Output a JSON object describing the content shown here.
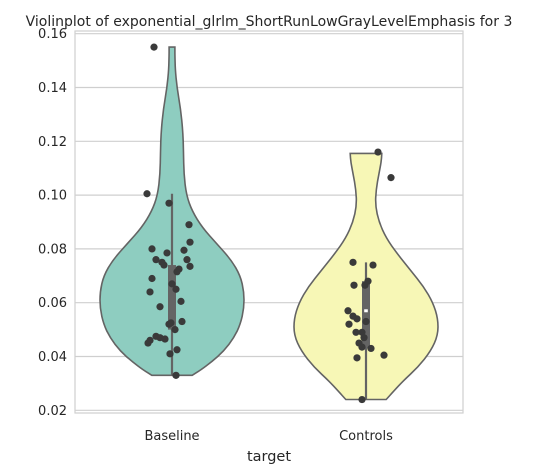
{
  "chart_data": {
    "type": "violin",
    "title": "Violinplot of exponential_glrlm_ShortRunLowGrayLevelEmphasis for 3",
    "xlabel": "target",
    "ylabel": "",
    "categories": [
      "Baseline",
      "Controls"
    ],
    "ylim": [
      0.019,
      0.161
    ],
    "yticks": [
      0.02,
      0.04,
      0.06,
      0.08,
      0.1,
      0.12,
      0.14,
      0.16
    ],
    "ytick_labels": [
      "0.02",
      "0.04",
      "0.06",
      "0.08",
      "0.10",
      "0.12",
      "0.14",
      "0.16"
    ],
    "grid": true,
    "colors": {
      "Baseline": "#8ecdc0",
      "Controls": "#f7f7b6",
      "points": "#3a3a3a",
      "box": "#646464",
      "outline": "#646464",
      "grid": "#cfcfcf",
      "axes": "#cfcfcf"
    },
    "violins": [
      {
        "category": "Baseline",
        "min": 0.033,
        "max": 0.155,
        "q1": 0.05,
        "median": 0.067,
        "q3": 0.074,
        "whisker_low": 0.033,
        "whisker_high": 0.1005,
        "density_halfwidth_fraction": [
          [
            0.033,
            0.28
          ],
          [
            0.035,
            0.4
          ],
          [
            0.038,
            0.55
          ],
          [
            0.042,
            0.72
          ],
          [
            0.047,
            0.86
          ],
          [
            0.052,
            0.95
          ],
          [
            0.058,
            1.0
          ],
          [
            0.064,
            1.0
          ],
          [
            0.07,
            0.95
          ],
          [
            0.076,
            0.82
          ],
          [
            0.082,
            0.62
          ],
          [
            0.088,
            0.42
          ],
          [
            0.094,
            0.28
          ],
          [
            0.1,
            0.2
          ],
          [
            0.108,
            0.165
          ],
          [
            0.116,
            0.16
          ],
          [
            0.124,
            0.15
          ],
          [
            0.132,
            0.12
          ],
          [
            0.14,
            0.07
          ],
          [
            0.147,
            0.045
          ],
          [
            0.152,
            0.04
          ],
          [
            0.155,
            0.04
          ]
        ],
        "points": [
          [
            -0.18,
            0.155
          ],
          [
            -0.03,
            0.097
          ],
          [
            -0.25,
            0.1005
          ],
          [
            0.17,
            0.089
          ],
          [
            0.18,
            0.0825
          ],
          [
            0.12,
            0.0795
          ],
          [
            -0.05,
            0.0785
          ],
          [
            -0.2,
            0.08
          ],
          [
            0.15,
            0.076
          ],
          [
            -0.16,
            0.076
          ],
          [
            -0.1,
            0.075
          ],
          [
            -0.08,
            0.074
          ],
          [
            0.18,
            0.0735
          ],
          [
            0.07,
            0.0725
          ],
          [
            0.05,
            0.0715
          ],
          [
            -0.2,
            0.069
          ],
          [
            0.0,
            0.067
          ],
          [
            0.04,
            0.065
          ],
          [
            -0.22,
            0.064
          ],
          [
            0.09,
            0.0605
          ],
          [
            -0.12,
            0.0585
          ],
          [
            0.1,
            0.053
          ],
          [
            -0.01,
            0.0525
          ],
          [
            -0.03,
            0.052
          ],
          [
            0.03,
            0.05
          ],
          [
            -0.16,
            0.0475
          ],
          [
            -0.12,
            0.047
          ],
          [
            -0.07,
            0.0465
          ],
          [
            -0.22,
            0.046
          ],
          [
            -0.24,
            0.045
          ],
          [
            0.05,
            0.0425
          ],
          [
            -0.02,
            0.041
          ],
          [
            0.04,
            0.033
          ]
        ]
      },
      {
        "category": "Controls",
        "min": 0.024,
        "max": 0.1155,
        "q1": 0.043,
        "median": 0.057,
        "q3": 0.068,
        "whisker_low": 0.024,
        "whisker_high": 0.075,
        "density_halfwidth_fraction": [
          [
            0.024,
            0.28
          ],
          [
            0.027,
            0.38
          ],
          [
            0.031,
            0.52
          ],
          [
            0.036,
            0.72
          ],
          [
            0.042,
            0.9
          ],
          [
            0.048,
            1.0
          ],
          [
            0.054,
            1.0
          ],
          [
            0.06,
            0.93
          ],
          [
            0.066,
            0.8
          ],
          [
            0.072,
            0.62
          ],
          [
            0.078,
            0.44
          ],
          [
            0.084,
            0.28
          ],
          [
            0.09,
            0.18
          ],
          [
            0.096,
            0.13
          ],
          [
            0.102,
            0.14
          ],
          [
            0.108,
            0.18
          ],
          [
            0.112,
            0.21
          ],
          [
            0.1155,
            0.22
          ]
        ],
        "points": [
          [
            0.12,
            0.116
          ],
          [
            0.25,
            0.1065
          ],
          [
            -0.13,
            0.075
          ],
          [
            0.07,
            0.074
          ],
          [
            -0.01,
            0.0665
          ],
          [
            0.02,
            0.068
          ],
          [
            -0.12,
            0.0665
          ],
          [
            -0.18,
            0.057
          ],
          [
            -0.13,
            0.055
          ],
          [
            -0.09,
            0.054
          ],
          [
            0.0,
            0.053
          ],
          [
            -0.17,
            0.052
          ],
          [
            -0.04,
            0.049
          ],
          [
            -0.1,
            0.049
          ],
          [
            -0.02,
            0.047
          ],
          [
            -0.07,
            0.045
          ],
          [
            0.05,
            0.043
          ],
          [
            -0.04,
            0.0435
          ],
          [
            0.18,
            0.0405
          ],
          [
            -0.09,
            0.0395
          ],
          [
            -0.04,
            0.024
          ]
        ]
      }
    ]
  }
}
